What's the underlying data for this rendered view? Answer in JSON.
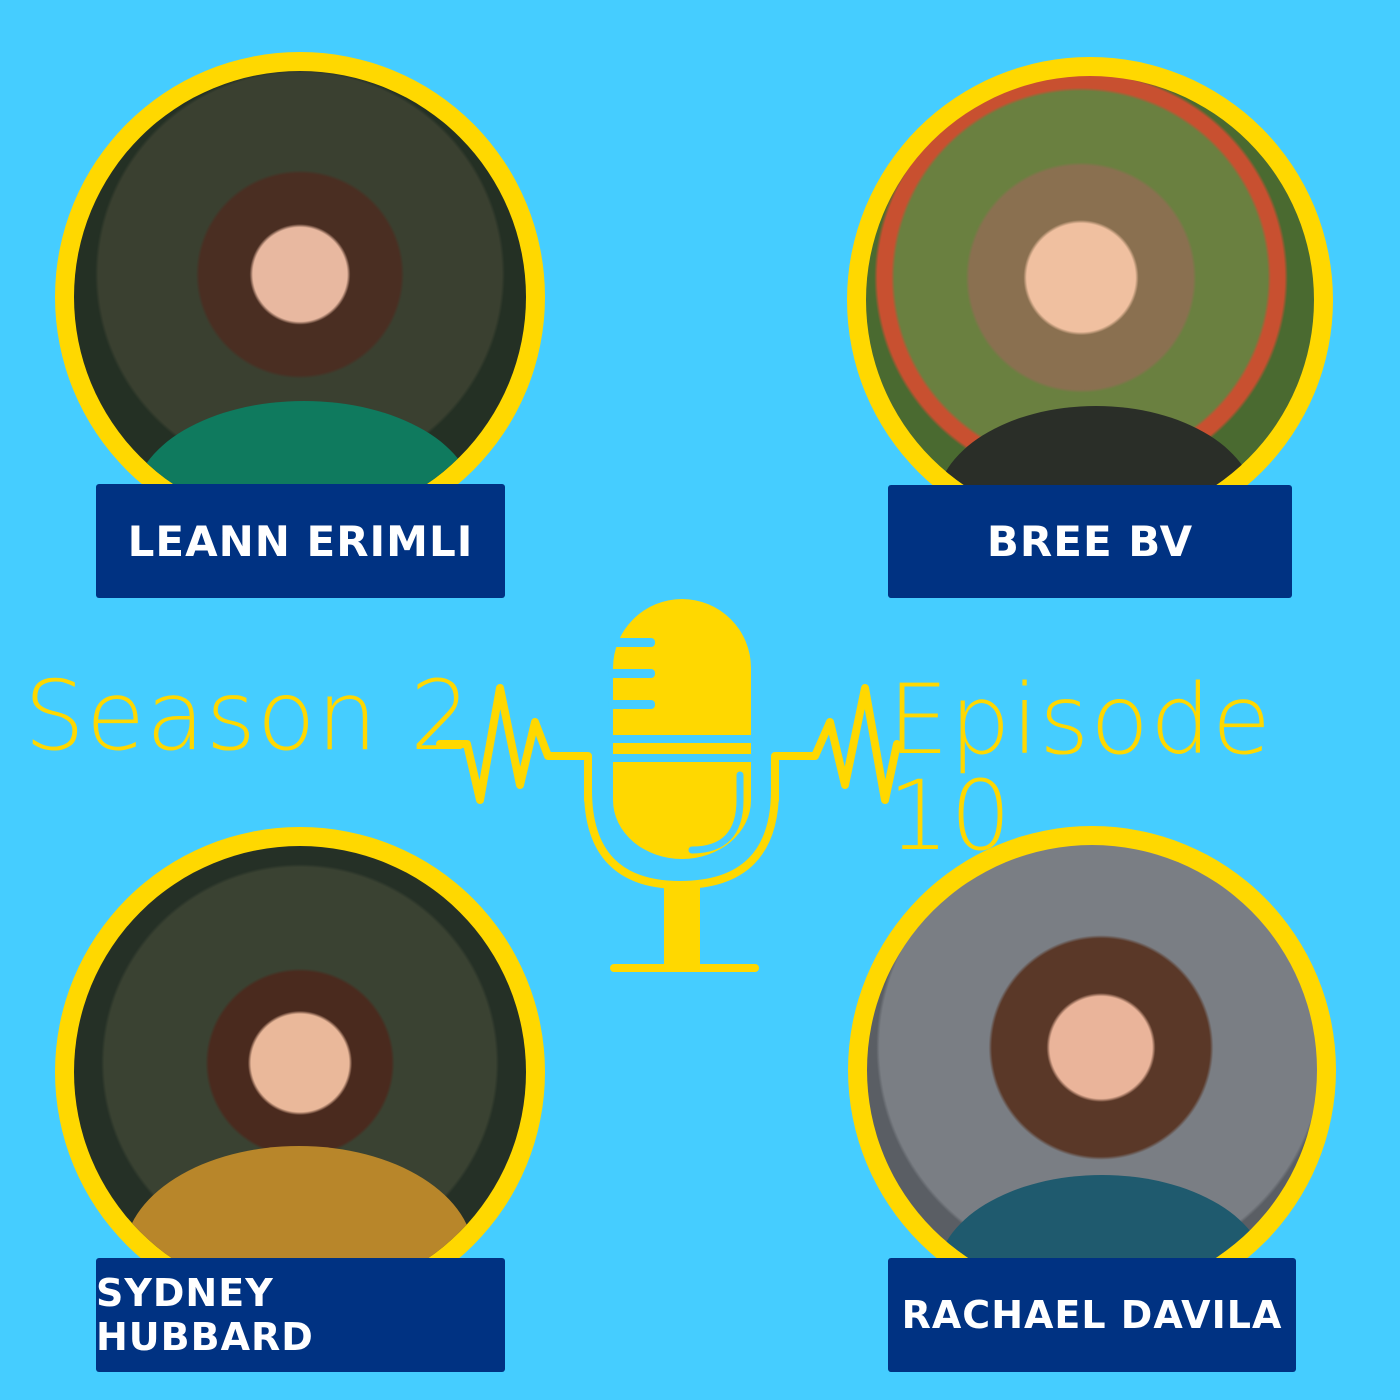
{
  "colors": {
    "background": "#45CDFF",
    "accent": "#FFD800",
    "label_bg": "#003282",
    "label_text": "#FFFFFF"
  },
  "title": {
    "season": "Season 2",
    "episode": "Episode 10"
  },
  "icon": "microphone-icon",
  "guests": [
    {
      "name": "LEANN ERIMLI"
    },
    {
      "name": "BREE BV"
    },
    {
      "name": "SYDNEY HUBBARD"
    },
    {
      "name": "RACHAEL DAVILA"
    }
  ]
}
